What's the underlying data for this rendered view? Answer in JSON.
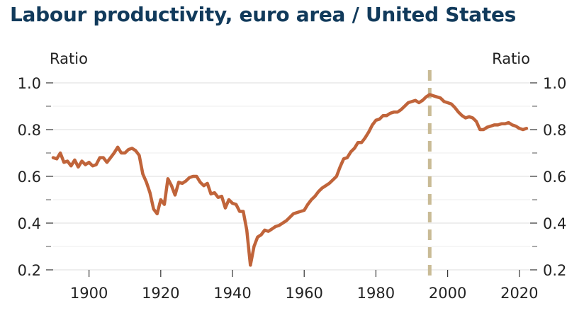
{
  "chart_data": {
    "type": "line",
    "title": "Labour productivity, euro area / United States",
    "ylabel_left": "Ratio",
    "ylabel_right": "Ratio",
    "xlim": [
      1890,
      2023
    ],
    "ylim": [
      0.2,
      1.0
    ],
    "x_ticks": [
      1900,
      1920,
      1940,
      1960,
      1980,
      2000,
      2020
    ],
    "y_ticks": [
      0.2,
      0.4,
      0.6,
      0.8,
      1.0
    ],
    "y_tick_labels": [
      "0.2",
      "0.4",
      "0.6",
      "0.8",
      "1.0"
    ],
    "y_minor_ticks": [
      0.3,
      0.5,
      0.7,
      0.9
    ],
    "grid": true,
    "legend": "none",
    "series_color": "#c0643a",
    "marker_color": "#c9bb96",
    "vertical_marker_x": 1995,
    "series": [
      {
        "x": [
          1890,
          1891,
          1892,
          1893,
          1894,
          1895,
          1896,
          1897,
          1898,
          1899,
          1900,
          1901,
          1902,
          1903,
          1904,
          1905,
          1906,
          1907,
          1908,
          1909,
          1910,
          1911,
          1912,
          1913,
          1914,
          1915,
          1916,
          1917,
          1918,
          1919,
          1920,
          1921,
          1922,
          1923,
          1924,
          1925,
          1926,
          1927,
          1928,
          1929,
          1930,
          1931,
          1932,
          1933,
          1934,
          1935,
          1936,
          1937,
          1938,
          1939,
          1940,
          1941,
          1942,
          1943,
          1944,
          1945,
          1946,
          1947,
          1948,
          1949,
          1950,
          1951,
          1952,
          1953,
          1954,
          1955,
          1956,
          1957,
          1958,
          1959,
          1960,
          1961,
          1962,
          1963,
          1964,
          1965,
          1966,
          1967,
          1968,
          1969,
          1970,
          1971,
          1972,
          1973,
          1974,
          1975,
          1976,
          1977,
          1978,
          1979,
          1980,
          1981,
          1982,
          1983,
          1984,
          1985,
          1986,
          1987,
          1988,
          1989,
          1990,
          1991,
          1992,
          1993,
          1994,
          1995,
          1996,
          1997,
          1998,
          1999,
          2000,
          2001,
          2002,
          2003,
          2004,
          2005,
          2006,
          2007,
          2008,
          2009,
          2010,
          2011,
          2012,
          2013,
          2014,
          2015,
          2016,
          2017,
          2018,
          2019,
          2020,
          2021,
          2022
        ],
        "values": [
          0.68,
          0.675,
          0.7,
          0.66,
          0.665,
          0.645,
          0.67,
          0.64,
          0.665,
          0.65,
          0.66,
          0.645,
          0.65,
          0.68,
          0.68,
          0.66,
          0.68,
          0.7,
          0.725,
          0.7,
          0.7,
          0.715,
          0.72,
          0.71,
          0.69,
          0.61,
          0.575,
          0.53,
          0.46,
          0.44,
          0.5,
          0.48,
          0.59,
          0.56,
          0.52,
          0.575,
          0.57,
          0.58,
          0.595,
          0.6,
          0.6,
          0.575,
          0.56,
          0.57,
          0.525,
          0.53,
          0.51,
          0.515,
          0.465,
          0.5,
          0.485,
          0.48,
          0.45,
          0.45,
          0.37,
          0.22,
          0.3,
          0.34,
          0.35,
          0.37,
          0.365,
          0.375,
          0.385,
          0.39,
          0.4,
          0.41,
          0.425,
          0.44,
          0.445,
          0.45,
          0.455,
          0.48,
          0.5,
          0.515,
          0.535,
          0.55,
          0.56,
          0.57,
          0.585,
          0.6,
          0.64,
          0.675,
          0.68,
          0.705,
          0.72,
          0.745,
          0.745,
          0.765,
          0.79,
          0.82,
          0.84,
          0.845,
          0.86,
          0.86,
          0.87,
          0.875,
          0.875,
          0.885,
          0.9,
          0.915,
          0.92,
          0.925,
          0.915,
          0.925,
          0.94,
          0.95,
          0.945,
          0.94,
          0.935,
          0.92,
          0.915,
          0.91,
          0.895,
          0.875,
          0.86,
          0.85,
          0.855,
          0.85,
          0.835,
          0.8,
          0.8,
          0.81,
          0.815,
          0.82,
          0.82,
          0.825,
          0.825,
          0.83,
          0.82,
          0.815,
          0.805,
          0.8,
          0.805
        ]
      }
    ]
  }
}
